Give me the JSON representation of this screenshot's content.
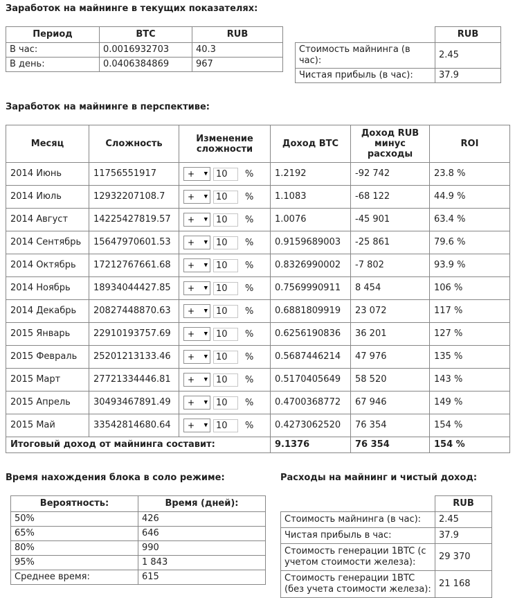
{
  "colors": {
    "border": "#868686",
    "text": "#222222",
    "control_border": "#8f8f8f"
  },
  "current": {
    "title": "Заработок на майнинге в текущих показателях:",
    "table": {
      "headers": [
        "Период",
        "BTC",
        "RUB"
      ],
      "rows": [
        [
          "В час:",
          "0.0016932703",
          "40.3"
        ],
        [
          "В день:",
          "0.0406384869",
          "967"
        ]
      ]
    },
    "costs": {
      "header": "RUB",
      "rows": [
        [
          "Стоимость майнинга (в час):",
          "2.45"
        ],
        [
          "Чистая прибыль (в час):",
          "37.9"
        ]
      ]
    }
  },
  "perspective": {
    "title": "Заработок на майнинге в перспективе:",
    "headers": [
      "Месяц",
      "Сложность",
      "Изменение сложности",
      "Доход BTC",
      "Доход RUB минус расходы",
      "ROI"
    ],
    "percent_label": "%",
    "rows": [
      {
        "month": "2014 Июнь",
        "difficulty": "11756551917",
        "sign": "+",
        "change": "10",
        "btc": "1.2192",
        "rub": "-92 742",
        "roi": "23.8 %"
      },
      {
        "month": "2014 Июль",
        "difficulty": "12932207108.7",
        "sign": "+",
        "change": "10",
        "btc": "1.1083",
        "rub": "-68 122",
        "roi": "44.9 %"
      },
      {
        "month": "2014 Август",
        "difficulty": "14225427819.57",
        "sign": "+",
        "change": "10",
        "btc": "1.0076",
        "rub": "-45 901",
        "roi": "63.4 %"
      },
      {
        "month": "2014 Сентябрь",
        "difficulty": "15647970601.53",
        "sign": "+",
        "change": "10",
        "btc": "0.9159689003",
        "rub": "-25 861",
        "roi": "79.6 %"
      },
      {
        "month": "2014 Октябрь",
        "difficulty": "17212767661.68",
        "sign": "+",
        "change": "10",
        "btc": "0.8326990002",
        "rub": "-7 802",
        "roi": "93.9 %"
      },
      {
        "month": "2014 Ноябрь",
        "difficulty": "18934044427.85",
        "sign": "+",
        "change": "10",
        "btc": "0.7569990911",
        "rub": "8 454",
        "roi": "106 %"
      },
      {
        "month": "2014 Декабрь",
        "difficulty": "20827448870.63",
        "sign": "+",
        "change": "10",
        "btc": "0.6881809919",
        "rub": "23 072",
        "roi": "117 %"
      },
      {
        "month": "2015 Январь",
        "difficulty": "22910193757.69",
        "sign": "+",
        "change": "10",
        "btc": "0.6256190836",
        "rub": "36 201",
        "roi": "127 %"
      },
      {
        "month": "2015 Февраль",
        "difficulty": "25201213133.46",
        "sign": "+",
        "change": "10",
        "btc": "0.5687446214",
        "rub": "47 976",
        "roi": "135 %"
      },
      {
        "month": "2015 Март",
        "difficulty": "27721334446.81",
        "sign": "+",
        "change": "10",
        "btc": "0.5170405649",
        "rub": "58 520",
        "roi": "143 %"
      },
      {
        "month": "2015 Апрель",
        "difficulty": "30493467891.49",
        "sign": "+",
        "change": "10",
        "btc": "0.4700368772",
        "rub": "67 946",
        "roi": "149 %"
      },
      {
        "month": "2015 Май",
        "difficulty": "33542814680.64",
        "sign": "+",
        "change": "10",
        "btc": "0.4273062520",
        "rub": "76 354",
        "roi": "154 %"
      }
    ],
    "total": {
      "label": "Итоговый доход от майнинга составит:",
      "btc": "9.1376",
      "rub": "76 354",
      "roi": "154 %"
    }
  },
  "solo": {
    "title": "Время нахождения блока в соло режиме:",
    "headers": [
      "Вероятность:",
      "Время (дней):"
    ],
    "rows": [
      [
        "50%",
        "426"
      ],
      [
        "65%",
        "646"
      ],
      [
        "80%",
        "990"
      ],
      [
        "95%",
        "1 843"
      ],
      [
        "Среднее время:",
        "615"
      ]
    ]
  },
  "expenses": {
    "title": "Расходы на майнинг и чистый доход:",
    "header": "RUB",
    "rows": [
      [
        "Стоимость майнинга (в час):",
        "2.45"
      ],
      [
        "Чистая прибыль в час:",
        "37.9"
      ],
      [
        "Стоимость генерации 1BTC (с учетом стоимости железа):",
        "29 370"
      ],
      [
        "Стоимость генерации 1BTC (без учета стоимости железа):",
        "21 168"
      ]
    ]
  }
}
